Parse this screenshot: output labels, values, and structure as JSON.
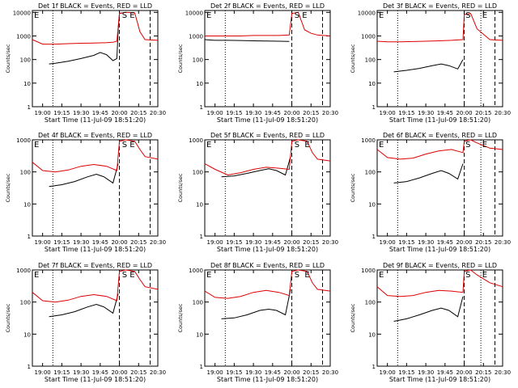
{
  "figure": {
    "title_template": "Det {det} BLACK = Events, RED = LLD",
    "xlabel": "Start Time (11-Jul-09 18:51:20)",
    "ylabel": "Counts/sec",
    "x_ticks": [
      "19:00",
      "19:15",
      "19:30",
      "19:45",
      "20:00",
      "20:15",
      "20:30"
    ],
    "y_ticks": [
      "1",
      "10",
      "100",
      "1000",
      "10000"
    ],
    "marker_E": "E",
    "marker_S": "S",
    "colors": {
      "events": "#000000",
      "lld": "#dd0000",
      "axes": "#000000"
    }
  },
  "chart_data": [
    {
      "type": "line",
      "detector": "1f",
      "scale": "log",
      "xlim": [
        "18:52",
        "20:30"
      ],
      "ylim": [
        1,
        12000
      ],
      "dotted_times": [
        "19:08"
      ],
      "dashed_times": [
        "20:00",
        "20:24"
      ],
      "s_time": "20:02",
      "e_time": "20:08",
      "series": [
        {
          "name": "BLACK = Events",
          "x": [
            "19:05",
            "19:10",
            "19:20",
            "19:30",
            "19:40",
            "19:45",
            "19:50",
            "19:55",
            "19:58",
            "19:59",
            "20:00",
            "20:05"
          ],
          "y": [
            65,
            70,
            85,
            110,
            150,
            200,
            160,
            90,
            110,
            1800,
            9000,
            10000
          ]
        },
        {
          "name": "RED = LLD",
          "x": [
            "18:52",
            "19:00",
            "19:10",
            "19:20",
            "19:30",
            "19:40",
            "19:50",
            "19:55",
            "19:58",
            "20:00",
            "20:05",
            "20:12",
            "20:16",
            "20:20",
            "20:30"
          ],
          "y": [
            700,
            450,
            450,
            470,
            490,
            500,
            520,
            540,
            600,
            9000,
            10000,
            9500,
            1500,
            700,
            650
          ]
        }
      ]
    },
    {
      "type": "line",
      "detector": "2f",
      "scale": "log",
      "xlim": [
        "18:52",
        "20:30"
      ],
      "ylim": [
        1,
        12000
      ],
      "dotted_times": [
        "19:08"
      ],
      "dashed_times": [
        "20:00",
        "20:24"
      ],
      "s_time": "20:02",
      "e_time": "20:08",
      "series": [
        {
          "name": "BLACK = Events",
          "x": [
            "18:52",
            "19:00",
            "19:10",
            "19:20",
            "19:30",
            "19:40",
            "19:50",
            "19:58"
          ],
          "y": [
            700,
            650,
            650,
            640,
            620,
            610,
            600,
            590
          ]
        },
        {
          "name": "RED = LLD",
          "x": [
            "18:52",
            "19:00",
            "19:10",
            "19:20",
            "19:30",
            "19:40",
            "19:50",
            "19:58",
            "20:00",
            "20:05",
            "20:10",
            "20:15",
            "20:20",
            "20:30"
          ],
          "y": [
            1000,
            1000,
            1000,
            1000,
            1050,
            1050,
            1050,
            1100,
            9000,
            10000,
            1800,
            1300,
            1100,
            1000
          ]
        }
      ]
    },
    {
      "type": "line",
      "detector": "3f",
      "scale": "log",
      "xlim": [
        "18:52",
        "20:30"
      ],
      "ylim": [
        1,
        12000
      ],
      "dotted_times": [
        "19:08",
        "20:13"
      ],
      "dashed_times": [
        "20:00",
        "20:24"
      ],
      "s_time": "20:01",
      "e_time": "20:14",
      "series": [
        {
          "name": "BLACK = Events",
          "x": [
            "19:05",
            "19:15",
            "19:25",
            "19:35",
            "19:42",
            "19:48",
            "19:55",
            "19:59"
          ],
          "y": [
            30,
            35,
            42,
            55,
            65,
            55,
            40,
            100
          ]
        },
        {
          "name": "RED = LLD",
          "x": [
            "18:52",
            "19:00",
            "19:10",
            "19:20",
            "19:30",
            "19:40",
            "19:50",
            "19:59",
            "20:00",
            "20:05",
            "20:10",
            "20:20",
            "20:30"
          ],
          "y": [
            600,
            560,
            560,
            580,
            600,
            620,
            650,
            700,
            8000,
            9000,
            2000,
            700,
            650
          ]
        }
      ]
    },
    {
      "type": "line",
      "detector": "4f",
      "scale": "log",
      "xlim": [
        "18:52",
        "20:30"
      ],
      "ylim": [
        1,
        1000
      ],
      "dotted_times": [
        "19:08"
      ],
      "dashed_times": [
        "20:00",
        "20:24"
      ],
      "s_time": "20:02",
      "e_time": "20:08",
      "series": [
        {
          "name": "BLACK = Events",
          "x": [
            "19:05",
            "19:15",
            "19:25",
            "19:35",
            "19:42",
            "19:48",
            "19:55",
            "19:59"
          ],
          "y": [
            35,
            40,
            50,
            70,
            85,
            70,
            45,
            180
          ]
        },
        {
          "name": "RED = LLD",
          "x": [
            "18:52",
            "19:00",
            "19:10",
            "19:20",
            "19:30",
            "19:40",
            "19:50",
            "19:58",
            "20:00",
            "20:05",
            "20:12",
            "20:16",
            "20:20",
            "20:30"
          ],
          "y": [
            200,
            110,
            100,
            115,
            150,
            170,
            150,
            110,
            900,
            1000,
            900,
            500,
            300,
            250
          ]
        }
      ]
    },
    {
      "type": "line",
      "detector": "5f",
      "scale": "log",
      "xlim": [
        "18:52",
        "20:30"
      ],
      "ylim": [
        1,
        1000
      ],
      "dotted_times": [
        "19:08"
      ],
      "dashed_times": [
        "20:00",
        "20:24"
      ],
      "s_time": "20:02",
      "e_time": "20:10",
      "series": [
        {
          "name": "BLACK = Events",
          "x": [
            "19:05",
            "19:15",
            "19:25",
            "19:35",
            "19:42",
            "19:48",
            "19:55",
            "19:59"
          ],
          "y": [
            70,
            75,
            90,
            110,
            125,
            110,
            80,
            300
          ]
        },
        {
          "name": "RED = LLD",
          "x": [
            "18:52",
            "19:00",
            "19:10",
            "19:20",
            "19:30",
            "19:40",
            "19:50",
            "19:58",
            "20:00",
            "20:05",
            "20:12",
            "20:16",
            "20:20",
            "20:30"
          ],
          "y": [
            180,
            120,
            80,
            95,
            120,
            140,
            130,
            120,
            900,
            1000,
            900,
            400,
            250,
            220
          ]
        }
      ]
    },
    {
      "type": "line",
      "detector": "6f",
      "scale": "log",
      "xlim": [
        "18:52",
        "20:30"
      ],
      "ylim": [
        1,
        1000
      ],
      "dotted_times": [
        "19:08",
        "20:13"
      ],
      "dashed_times": [
        "20:00",
        "20:24"
      ],
      "s_time": "20:01",
      "e_time": "20:14",
      "series": [
        {
          "name": "BLACK = Events",
          "x": [
            "19:05",
            "19:15",
            "19:25",
            "19:35",
            "19:42",
            "19:48",
            "19:55",
            "19:59"
          ],
          "y": [
            45,
            50,
            65,
            90,
            110,
            90,
            60,
            180
          ]
        },
        {
          "name": "RED = LLD",
          "x": [
            "18:52",
            "19:00",
            "19:10",
            "19:20",
            "19:30",
            "19:40",
            "19:50",
            "19:59",
            "20:00",
            "20:05",
            "20:10",
            "20:20",
            "20:30"
          ],
          "y": [
            500,
            280,
            250,
            270,
            360,
            450,
            500,
            400,
            900,
            1000,
            800,
            550,
            500
          ]
        }
      ]
    },
    {
      "type": "line",
      "detector": "7f",
      "scale": "log",
      "xlim": [
        "18:52",
        "20:30"
      ],
      "ylim": [
        1,
        1000
      ],
      "dotted_times": [
        "19:08"
      ],
      "dashed_times": [
        "20:00",
        "20:24"
      ],
      "s_time": "20:02",
      "e_time": "20:08",
      "series": [
        {
          "name": "BLACK = Events",
          "x": [
            "19:05",
            "19:15",
            "19:25",
            "19:35",
            "19:42",
            "19:48",
            "19:55",
            "19:59"
          ],
          "y": [
            35,
            40,
            50,
            70,
            85,
            70,
            45,
            180
          ]
        },
        {
          "name": "RED = LLD",
          "x": [
            "18:52",
            "19:00",
            "19:10",
            "19:20",
            "19:30",
            "19:40",
            "19:50",
            "19:58",
            "20:00",
            "20:05",
            "20:12",
            "20:16",
            "20:20",
            "20:30"
          ],
          "y": [
            200,
            110,
            100,
            115,
            150,
            170,
            150,
            110,
            900,
            1000,
            900,
            500,
            300,
            250
          ]
        }
      ]
    },
    {
      "type": "line",
      "detector": "8f",
      "scale": "log",
      "xlim": [
        "18:52",
        "20:30"
      ],
      "ylim": [
        1,
        1000
      ],
      "dotted_times": [
        "19:08"
      ],
      "dashed_times": [
        "20:00",
        "20:24"
      ],
      "s_time": "20:02",
      "e_time": "20:10",
      "series": [
        {
          "name": "BLACK = Events",
          "x": [
            "19:05",
            "19:15",
            "19:25",
            "19:35",
            "19:42",
            "19:48",
            "19:55",
            "19:59"
          ],
          "y": [
            30,
            32,
            40,
            55,
            60,
            55,
            40,
            250
          ]
        },
        {
          "name": "RED = LLD",
          "x": [
            "18:52",
            "19:00",
            "19:10",
            "19:20",
            "19:30",
            "19:40",
            "19:50",
            "19:58",
            "20:00",
            "20:05",
            "20:12",
            "20:16",
            "20:20",
            "20:30"
          ],
          "y": [
            220,
            140,
            130,
            150,
            200,
            230,
            200,
            160,
            900,
            1000,
            900,
            400,
            250,
            220
          ]
        }
      ]
    },
    {
      "type": "line",
      "detector": "9f",
      "scale": "log",
      "xlim": [
        "18:52",
        "20:30"
      ],
      "ylim": [
        1,
        1000
      ],
      "dotted_times": [
        "19:08",
        "20:13"
      ],
      "dashed_times": [
        "20:00",
        "20:24"
      ],
      "s_time": "20:01",
      "e_time": "20:14",
      "series": [
        {
          "name": "BLACK = Events",
          "x": [
            "19:05",
            "19:15",
            "19:25",
            "19:35",
            "19:42",
            "19:48",
            "19:55",
            "19:59"
          ],
          "y": [
            25,
            30,
            40,
            55,
            65,
            55,
            35,
            150
          ]
        },
        {
          "name": "RED = LLD",
          "x": [
            "18:52",
            "19:00",
            "19:10",
            "19:20",
            "19:30",
            "19:40",
            "19:50",
            "19:59",
            "20:00",
            "20:05",
            "20:10",
            "20:20",
            "20:30"
          ],
          "y": [
            300,
            160,
            150,
            160,
            200,
            230,
            220,
            200,
            900,
            1000,
            700,
            400,
            300
          ]
        }
      ]
    }
  ]
}
